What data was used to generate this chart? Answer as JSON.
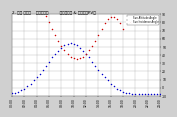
{
  "bg_color": "#d0d0d0",
  "plot_bg_color": "#ffffff",
  "grid_color": "#aaaaaa",
  "x_min": 0,
  "x_max": 1440,
  "y_min": -10,
  "y_max": 90,
  "y_ticks": [
    -10,
    0,
    10,
    20,
    30,
    40,
    50,
    60,
    70,
    80,
    90
  ],
  "sun_altitude_color": "#0000cc",
  "incidence_color": "#cc0000",
  "marker_size": 1.2,
  "legend_alt": "Sun Altitude Angle",
  "legend_inc": "Sun Incidence Angle",
  "title": "2. 很好 不下雨    有雲彩居多         太陽高度角 & 入射角到PV板",
  "sun_altitude_x": [
    0,
    30,
    60,
    90,
    120,
    150,
    180,
    210,
    240,
    270,
    300,
    330,
    360,
    390,
    420,
    450,
    480,
    510,
    540,
    570,
    600,
    630,
    660,
    690,
    720,
    750,
    780,
    810,
    840,
    870,
    900,
    930,
    960,
    990,
    1020,
    1050,
    1080,
    1110,
    1140,
    1170,
    1200,
    1230,
    1260,
    1290,
    1320,
    1350,
    1380,
    1410,
    1440
  ],
  "sun_altitude_y": [
    -7,
    -6,
    -5,
    -3,
    -1,
    2,
    5,
    9,
    13,
    17,
    22,
    27,
    32,
    37,
    41,
    45,
    49,
    52,
    54,
    55,
    54,
    52,
    49,
    45,
    41,
    37,
    32,
    27,
    22,
    17,
    13,
    9,
    5,
    2,
    -1,
    -3,
    -5,
    -6,
    -7,
    -8,
    -8,
    -8,
    -8,
    -8,
    -8,
    -8,
    -8,
    -8,
    -8
  ],
  "incidence_x": [
    330,
    360,
    390,
    420,
    450,
    480,
    510,
    540,
    570,
    600,
    630,
    660,
    690,
    720,
    750,
    780,
    810,
    840,
    870,
    900,
    930,
    960,
    990,
    1020,
    1050,
    1080
  ],
  "incidence_y": [
    88,
    80,
    72,
    64,
    57,
    51,
    46,
    41,
    38,
    36,
    35,
    36,
    38,
    41,
    46,
    51,
    57,
    64,
    72,
    79,
    84,
    87,
    87,
    84,
    79,
    72
  ],
  "x_tick_step": 120,
  "title_fontsize": 3.0,
  "tick_fontsize": 2.2,
  "legend_fontsize": 1.8
}
